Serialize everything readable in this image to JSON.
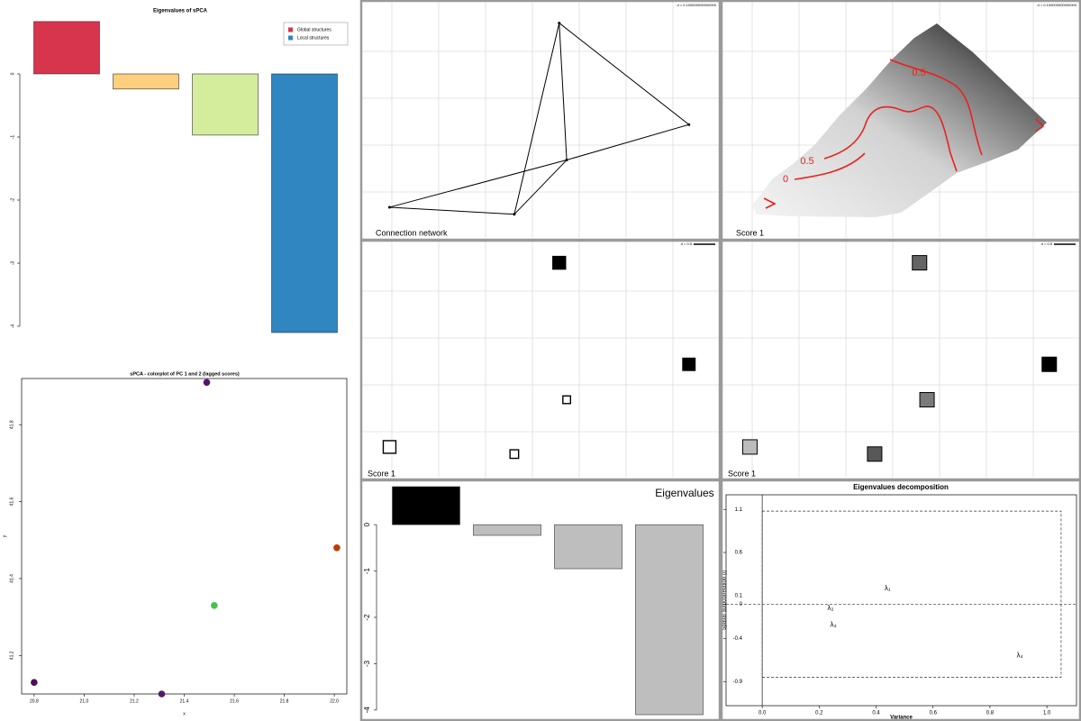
{
  "chart_data": [
    {
      "type": "bar",
      "title": "Eigenvalues of sPCA",
      "values": [
        0.83,
        -0.24,
        -0.97,
        -4.1
      ],
      "colors": [
        "#d7354d",
        "#fdcf7e",
        "#d4ed9c",
        "#2f86c0"
      ],
      "ylim": [
        -4.1,
        0.83
      ],
      "yticks": [
        0,
        -1,
        -2,
        -3,
        -4
      ],
      "legend": [
        {
          "name": "Global structures",
          "color": "#d7354d"
        },
        {
          "name": "Local structures",
          "color": "#2f86c0"
        }
      ],
      "legend_position": "top-right"
    },
    {
      "type": "scatter",
      "title": "sPCA - colorplot of PC 1 and 2 (lagged scores)",
      "x_label": "x",
      "y_label": "y",
      "x": [
        20.8,
        21.31,
        21.49,
        21.52,
        22.01
      ],
      "y": [
        41.13,
        41.1,
        41.91,
        41.33,
        41.48
      ],
      "colors": [
        "#4a1158",
        "#561a6c",
        "#5b126e",
        "#46c24e",
        "#c23b05"
      ],
      "xlim": [
        20.75,
        22.05
      ],
      "ylim": [
        41.1,
        41.92
      ],
      "xticks": [
        20.8,
        {
          "value": 21,
          "label": "21.0"
        },
        21.2,
        21.4,
        21.6,
        21.8,
        {
          "value": 22,
          "label": "22.0"
        }
      ],
      "yticks": [
        41.2,
        41.4,
        41.6,
        41.8
      ]
    },
    {
      "type": "network",
      "label": "Connection network",
      "scale_label": "d = 0.100000000000000",
      "x": [
        20.8,
        21.3,
        21.48,
        21.51,
        22.0
      ],
      "y": [
        41.13,
        41.1,
        41.91,
        41.33,
        41.48
      ],
      "edges": [
        [
          0,
          1
        ],
        [
          0,
          3
        ],
        [
          3,
          4
        ],
        [
          1,
          2
        ],
        [
          1,
          3
        ],
        [
          2,
          3
        ],
        [
          2,
          4
        ]
      ],
      "xlim": [
        20.69,
        22.12
      ],
      "ylim": [
        41.0,
        42.0
      ]
    },
    {
      "type": "heatmap",
      "label": "Score 1",
      "scale_label": "d = 0.100000000000000",
      "contour_labels": [
        0.5,
        0.5,
        0
      ]
    },
    {
      "type": "squares",
      "label": "Score 1",
      "scale_label": "d = 0.5",
      "style": "sign",
      "values": [
        -0.9,
        -0.45,
        0.9,
        -0.35,
        0.85
      ]
    },
    {
      "type": "squares",
      "label": "Score 1",
      "scale_label": "d = 0.5",
      "style": "gray",
      "values": [
        -0.6,
        0.25,
        0.15,
        -0.05,
        1.0
      ]
    },
    {
      "type": "bar",
      "title": "Eigenvalues",
      "values": [
        0.82,
        -0.23,
        -0.95,
        -4.1
      ],
      "colors": [
        "#000000",
        "#bebebe",
        "#bebebe",
        "#bebebe"
      ],
      "ylim": [
        -4.1,
        0.82
      ],
      "yticks": [
        0,
        -1,
        -2,
        -3,
        -4
      ]
    },
    {
      "type": "scatter",
      "title": "Eigenvalues decomposition",
      "x_label": "Variance",
      "y_label": "Spatial autocorrelation (I)",
      "x": [
        0.44,
        0.24,
        0.25,
        0.905
      ],
      "y": [
        0.18,
        -0.05,
        -0.24,
        -0.6
      ],
      "point_labels": [
        "λ₁",
        "λ₂",
        "λ₃",
        "λ₄"
      ],
      "bounds": {
        "x": [
          0,
          1.05
        ],
        "y": [
          -0.85,
          1.08
        ]
      },
      "xlim": [
        -0.127,
        1.104
      ],
      "ylim": [
        -1.18,
        1.27
      ],
      "xticks": [
        {
          "value": 0,
          "label": "0.0"
        },
        0.2,
        0.4,
        0.6,
        0.8,
        {
          "value": 1,
          "label": "1.0"
        }
      ],
      "yticks": [
        1.1,
        0.6,
        0.1,
        0,
        -0.4,
        -0.9
      ]
    }
  ]
}
